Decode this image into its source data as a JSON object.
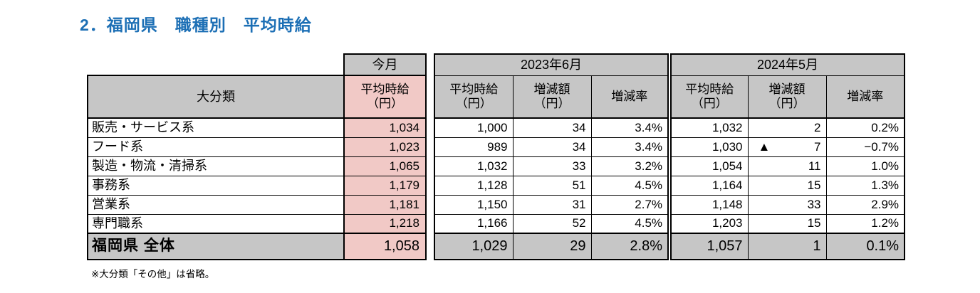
{
  "title": "2．福岡県　職種別　平均時給",
  "colors": {
    "title_blue": "#1C6FB5",
    "header_gray": "#C6C6C6",
    "highlight_pink": "#F1C9C6"
  },
  "table": {
    "category_header": "大分類",
    "current": {
      "group_label": "今月",
      "wage_header": "平均時給\n（円）"
    },
    "period_2023": {
      "label": "2023年6月",
      "wage_header": "平均時給\n（円）",
      "diff_header": "増減額\n（円）",
      "rate_header": "増減率"
    },
    "period_2024": {
      "label": "2024年5月",
      "wage_header": "平均時給\n（円）",
      "diff_header": "増減額\n（円）",
      "rate_header": "増減率"
    },
    "rows": [
      {
        "category": "販売・サービス系",
        "current_wage": "1,034",
        "y2023": {
          "wage": "1,000",
          "diff": "34",
          "rate": "3.4%"
        },
        "y2024": {
          "wage": "1,032",
          "mark": "",
          "diff": "2",
          "rate": "0.2%"
        }
      },
      {
        "category": "フード系",
        "current_wage": "1,023",
        "y2023": {
          "wage": "989",
          "diff": "34",
          "rate": "3.4%"
        },
        "y2024": {
          "wage": "1,030",
          "mark": "▲",
          "diff": "7",
          "rate": "−0.7%"
        }
      },
      {
        "category": "製造・物流・清掃系",
        "current_wage": "1,065",
        "y2023": {
          "wage": "1,032",
          "diff": "33",
          "rate": "3.2%"
        },
        "y2024": {
          "wage": "1,054",
          "mark": "",
          "diff": "11",
          "rate": "1.0%"
        }
      },
      {
        "category": "事務系",
        "current_wage": "1,179",
        "y2023": {
          "wage": "1,128",
          "diff": "51",
          "rate": "4.5%"
        },
        "y2024": {
          "wage": "1,164",
          "mark": "",
          "diff": "15",
          "rate": "1.3%"
        }
      },
      {
        "category": "営業系",
        "current_wage": "1,181",
        "y2023": {
          "wage": "1,150",
          "diff": "31",
          "rate": "2.7%"
        },
        "y2024": {
          "wage": "1,148",
          "mark": "",
          "diff": "33",
          "rate": "2.9%"
        }
      },
      {
        "category": "専門職系",
        "current_wage": "1,218",
        "y2023": {
          "wage": "1,166",
          "diff": "52",
          "rate": "4.5%"
        },
        "y2024": {
          "wage": "1,203",
          "mark": "",
          "diff": "15",
          "rate": "1.2%"
        }
      }
    ],
    "total": {
      "category": "福岡県 全体",
      "current_wage": "1,058",
      "y2023": {
        "wage": "1,029",
        "diff": "29",
        "rate": "2.8%"
      },
      "y2024": {
        "wage": "1,057",
        "mark": "",
        "diff": "1",
        "rate": "0.1%"
      }
    }
  },
  "footnote": "※大分類「その他」は省略。"
}
